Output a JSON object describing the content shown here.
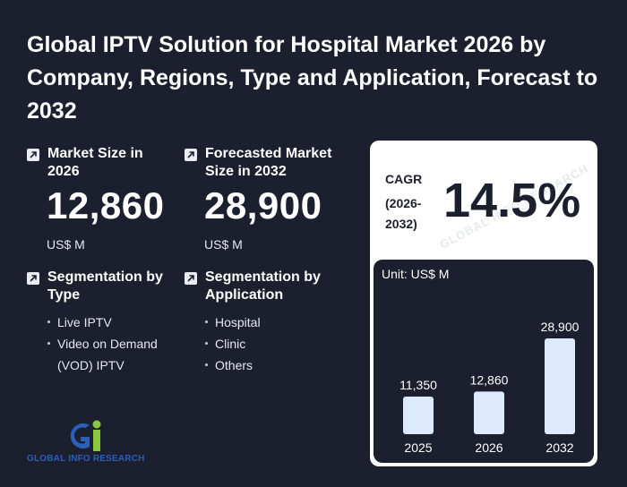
{
  "title": "Global IPTV Solution for Hospital Market 2026 by Company, Regions, Type and Application, Forecast to 2032",
  "market_size": {
    "label": "Market Size in 2026",
    "value": "12,860",
    "unit": "US$ M"
  },
  "forecast_size": {
    "label": "Forecasted Market Size in 2032",
    "value": "28,900",
    "unit": "US$ M"
  },
  "seg_type": {
    "label": "Segmentation by Type",
    "items": [
      "Live IPTV",
      "Video on Demand (VOD) IPTV"
    ]
  },
  "seg_app": {
    "label": "Segmentation by Application",
    "items": [
      "Hospital",
      "Clinic",
      "Others"
    ]
  },
  "cagr": {
    "label": "CAGR",
    "period": "(2026-2032)",
    "value": "14.5%"
  },
  "chart_data": {
    "type": "bar",
    "unit_label": "Unit: US$ M",
    "categories": [
      "2025",
      "2026",
      "2032"
    ],
    "values": [
      11350,
      12860,
      28900
    ],
    "value_labels": [
      "11,350",
      "12,860",
      "28,900"
    ],
    "bar_color": "#dceafc"
  },
  "watermark": "GLOBAL INFO RESEARCH",
  "logo": {
    "text": "GLOBAL INFO RESEARCH"
  }
}
